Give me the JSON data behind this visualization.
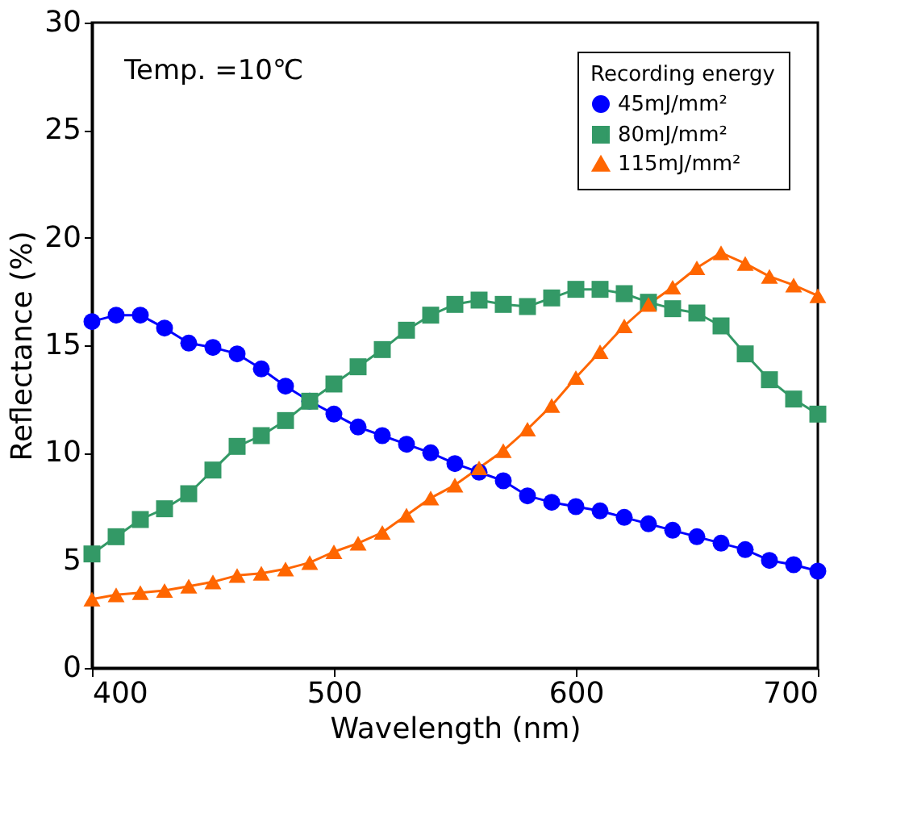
{
  "chart_data": {
    "type": "line",
    "xlabel": "Wavelength (nm)",
    "ylabel": "Reflectance (%)",
    "legend_title": "Recording energy",
    "annotations": [
      "Temp. =10℃"
    ],
    "x": [
      400,
      410,
      420,
      430,
      440,
      450,
      460,
      470,
      480,
      490,
      500,
      510,
      520,
      530,
      540,
      550,
      560,
      570,
      580,
      590,
      600,
      610,
      620,
      630,
      640,
      650,
      660,
      670,
      680,
      690,
      700
    ],
    "series": [
      {
        "name": "45mJ/mm²",
        "color": "#0000ff",
        "marker": "circle",
        "values": [
          16.1,
          16.4,
          16.4,
          15.8,
          15.1,
          14.9,
          14.6,
          13.9,
          13.1,
          12.4,
          11.8,
          11.2,
          10.8,
          10.4,
          10.0,
          9.5,
          9.1,
          8.7,
          8.0,
          7.7,
          7.5,
          7.3,
          7.0,
          6.7,
          6.4,
          6.1,
          5.8,
          5.5,
          5.0,
          4.8,
          4.5
        ]
      },
      {
        "name": "80mJ/mm²",
        "color": "#339966",
        "marker": "square",
        "values": [
          5.3,
          6.1,
          6.9,
          7.4,
          8.1,
          9.2,
          10.3,
          10.8,
          11.5,
          12.4,
          13.2,
          14.0,
          14.8,
          15.7,
          16.4,
          16.9,
          17.1,
          16.9,
          16.8,
          17.2,
          17.6,
          17.6,
          17.4,
          17.0,
          16.7,
          16.5,
          15.9,
          14.6,
          13.4,
          12.5,
          11.8
        ]
      },
      {
        "name": "115mJ/mm²",
        "color": "#ff6600",
        "marker": "triangle",
        "values": [
          3.2,
          3.4,
          3.5,
          3.6,
          3.8,
          4.0,
          4.3,
          4.4,
          4.6,
          4.9,
          5.4,
          5.8,
          6.3,
          7.1,
          7.9,
          8.5,
          9.3,
          10.1,
          11.1,
          12.2,
          13.5,
          14.7,
          15.9,
          16.9,
          17.7,
          18.6,
          19.3,
          18.8,
          18.2,
          17.8,
          17.3
        ]
      }
    ],
    "xlim": [
      400,
      700
    ],
    "xticks": [
      400,
      500,
      600,
      700
    ],
    "ylim": [
      0,
      30
    ],
    "yticks": [
      0,
      5,
      10,
      15,
      20,
      25,
      30
    ],
    "grid": false,
    "legend": "top right",
    "line_style": "solid"
  }
}
